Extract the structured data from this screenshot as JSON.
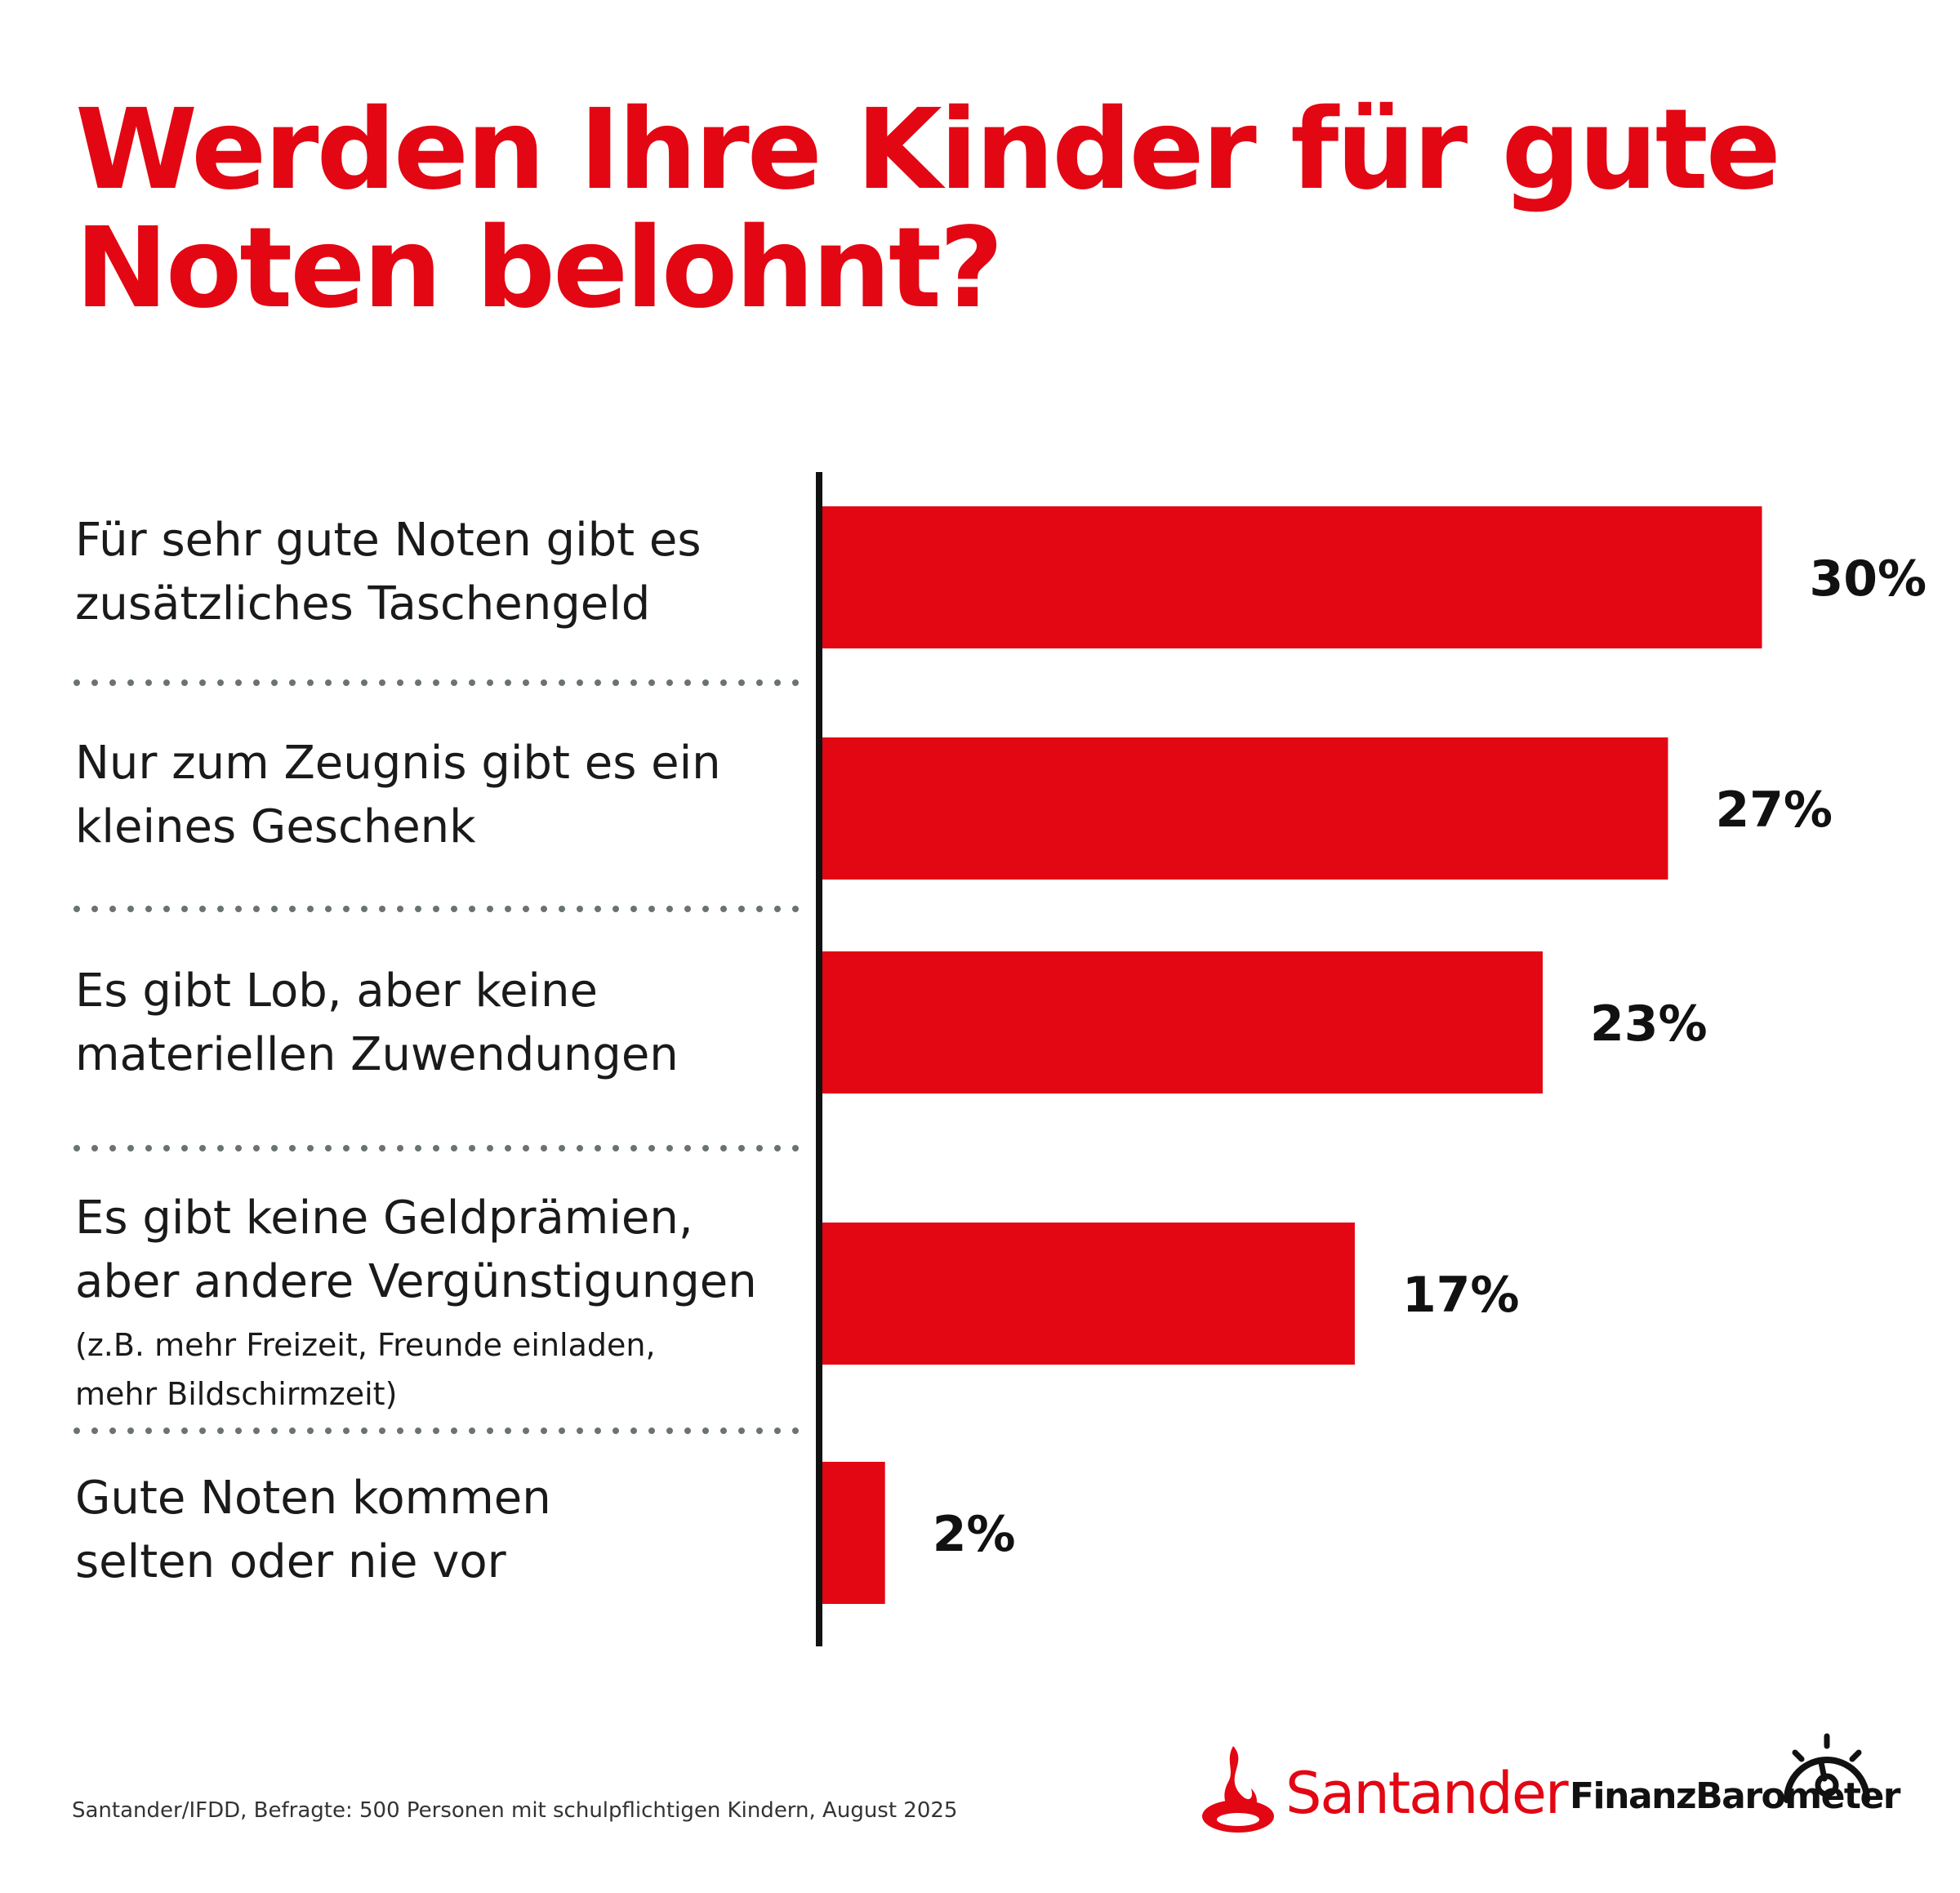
{
  "title": {
    "line1": "Werden Ihre Kinder für gute",
    "line2": "Noten belohnt?"
  },
  "chart_data": {
    "type": "bar",
    "orientation": "horizontal",
    "categories": [
      "Für sehr gute Noten gibt es zusätzliches Taschengeld",
      "Nur zum Zeugnis gibt es ein kleines Geschenk",
      "Es gibt Lob, aber keine materiellen Zuwendungen",
      "Es gibt keine Geldprämien, aber andere Vergünstigungen (z.B. mehr Freizeit, Freunde einladen, mehr Bildschirmzeit)",
      "Gute Noten kommen selten oder nie vor"
    ],
    "category_lines": [
      [
        "Für sehr gute Noten gibt es",
        "zusätzliches Taschengeld"
      ],
      [
        "Nur zum Zeugnis gibt es ein",
        "kleines Geschenk"
      ],
      [
        "Es gibt Lob, aber keine",
        "materiellen Zuwendungen"
      ],
      [
        "Es gibt keine Geldprämien,",
        "aber andere Vergünstigungen"
      ],
      [
        "Gute Noten kommen",
        "selten oder nie vor"
      ]
    ],
    "category_notes": [
      [],
      [],
      [],
      [
        "(z.B. mehr Freizeit, Freunde einladen,",
        "mehr Bildschirmzeit)"
      ],
      []
    ],
    "values": [
      30,
      27,
      23,
      17,
      2
    ],
    "value_labels": [
      "30%",
      "27%",
      "23%",
      "17%",
      "2%"
    ],
    "unit": "%",
    "bar_color": "#e30613",
    "separator_color": "#6b7370",
    "axis_color": "#111111",
    "grid": false,
    "legend": "none"
  },
  "source": "Santander/IFDD, Befragte: 500 Personen mit schulpflichtigen Kindern, August 2025",
  "logo": {
    "brand": "Santander",
    "product": "FinanzBarometer",
    "brand_color": "#e30613",
    "flame_icon": "santander-flame-icon",
    "gauge_icon": "speedometer-icon"
  }
}
